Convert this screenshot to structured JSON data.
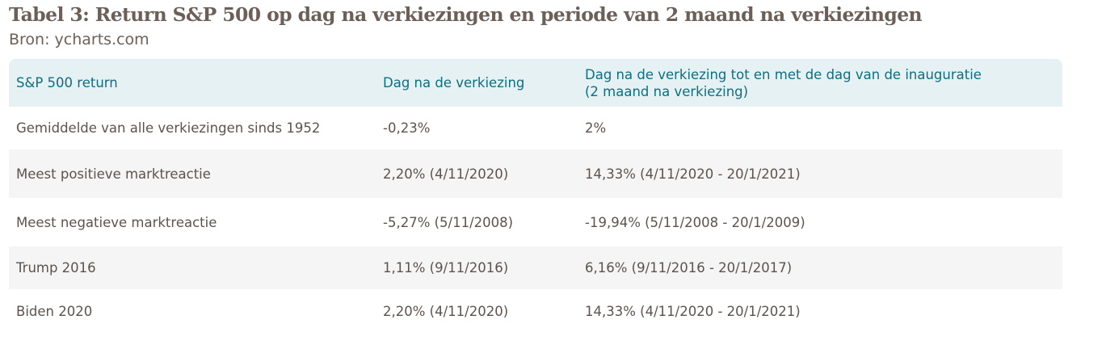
{
  "title": "Tabel 3: Return S&P 500 op dag na verkiezingen en periode van 2 maand na verkiezingen",
  "source": "Bron: ycharts.com",
  "table": {
    "headers": [
      "S&P 500 return",
      "Dag na de verkiezing",
      "Dag na de verkiezing tot en met de dag van de inauguratie",
      "(2 maand na verkiezing)"
    ],
    "rows": [
      [
        "Gemiddelde van alle verkiezingen sinds 1952",
        "-0,23%",
        "2%"
      ],
      [
        "Meest positieve marktreactie",
        "2,20% (4/11/2020)",
        "14,33% (4/11/2020 - 20/1/2021)"
      ],
      [
        "Meest negatieve marktreactie",
        "-5,27% (5/11/2008)",
        "-19,94% (5/11/2008 - 20/1/2009)"
      ],
      [
        "Trump 2016",
        "1,11% (9/11/2016)",
        "6,16% (9/11/2016 - 20/1/2017)"
      ],
      [
        "Biden 2020",
        "2,20% (4/11/2020)",
        "14,33% (4/11/2020 - 20/1/2021)"
      ]
    ]
  }
}
